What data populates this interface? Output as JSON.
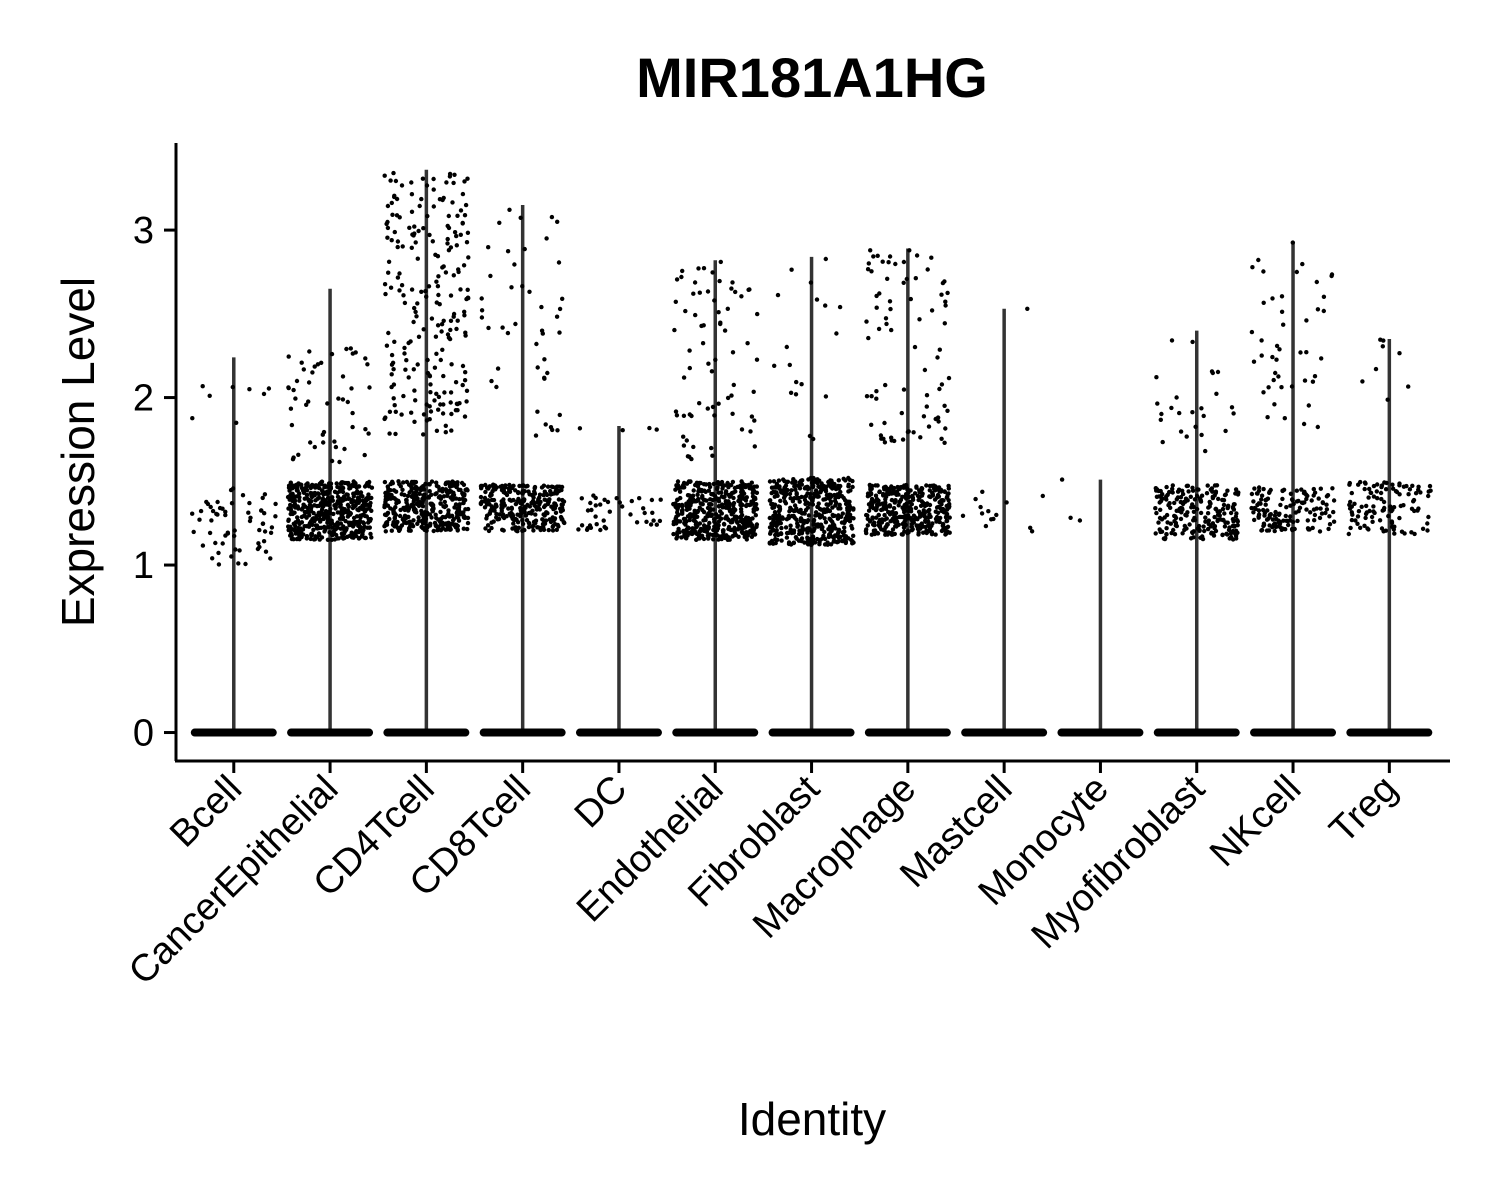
{
  "chart_data": {
    "type": "violin",
    "title": "MIR181A1HG",
    "xlabel": "Identity",
    "ylabel": "Expression Level",
    "ylim": [
      -0.17,
      3.52
    ],
    "yticks": [
      0,
      1,
      2,
      3
    ],
    "ytick_labels": [
      "0",
      "1",
      "2",
      "3"
    ],
    "grid": false,
    "legend": "none",
    "point_color": "#000000",
    "violin_color": "#333333",
    "categories": [
      "Bcell",
      "CancerEpithelial",
      "CD4Tcell",
      "CD8Tcell",
      "DC",
      "Endothelial",
      "Fibroblast",
      "Macrophage",
      "Mastcell",
      "Monocyte",
      "Myofibroblast",
      "NKcell",
      "Treg"
    ],
    "max_values": [
      2.24,
      2.65,
      3.36,
      3.15,
      1.83,
      2.82,
      2.84,
      2.89,
      2.53,
      1.51,
      2.4,
      2.93,
      2.35
    ],
    "nonzero_clusters": [
      {
        "low": [
          1.0,
          1.46
        ],
        "high": [
          1.72,
          2.23
        ],
        "low_n": 60,
        "high_n": 8
      },
      {
        "low": [
          1.15,
          1.5
        ],
        "high": [
          1.6,
          2.33
        ],
        "low_n": 500,
        "high_n": 50
      },
      {
        "low": [
          1.2,
          1.5
        ],
        "high": [
          1.78,
          3.36
        ],
        "low_n": 360,
        "high_n": 220
      },
      {
        "low": [
          1.2,
          1.48
        ],
        "high": [
          1.77,
          3.15
        ],
        "low_n": 280,
        "high_n": 45
      },
      {
        "low": [
          1.2,
          1.42
        ],
        "high": [
          1.8,
          1.83
        ],
        "low_n": 40,
        "high_n": 4
      },
      {
        "low": [
          1.15,
          1.5
        ],
        "high": [
          1.62,
          2.82
        ],
        "low_n": 450,
        "high_n": 70
      },
      {
        "low": [
          1.12,
          1.52
        ],
        "high": [
          1.72,
          2.84
        ],
        "low_n": 450,
        "high_n": 18
      },
      {
        "low": [
          1.18,
          1.48
        ],
        "high": [
          1.72,
          2.89
        ],
        "low_n": 380,
        "high_n": 80
      },
      {
        "low": [
          1.18,
          1.45
        ],
        "high": [
          2.53,
          2.53
        ],
        "low_n": 14,
        "high_n": 1
      },
      {
        "low": [
          1.26,
          1.29
        ],
        "high": [
          1.51,
          1.51
        ],
        "low_n": 2,
        "high_n": 1
      },
      {
        "low": [
          1.15,
          1.48
        ],
        "high": [
          1.68,
          2.4
        ],
        "low_n": 220,
        "high_n": 25
      },
      {
        "low": [
          1.2,
          1.47
        ],
        "high": [
          1.8,
          2.93
        ],
        "low_n": 140,
        "high_n": 45
      },
      {
        "low": [
          1.18,
          1.5
        ],
        "high": [
          1.95,
          2.35
        ],
        "low_n": 110,
        "high_n": 8
      }
    ]
  }
}
